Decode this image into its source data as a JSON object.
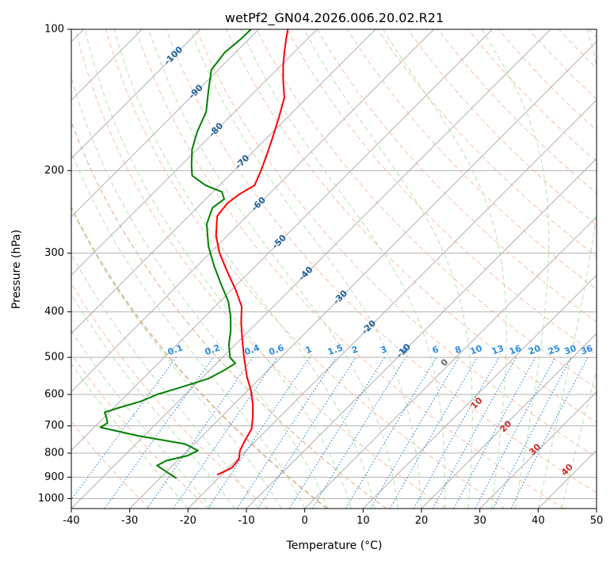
{
  "chart_data": {
    "type": "line",
    "subtype": "skew-t log-p diagram",
    "title": "wetPf2_GN04.2026.006.20.02.R21",
    "xlabel": "Temperature (°C)",
    "ylabel": "Pressure (hPa)",
    "xlim": [
      -40,
      50
    ],
    "ylim": [
      1050,
      100
    ],
    "y_scale": "log",
    "x_ticks": [
      -40,
      -30,
      -20,
      -10,
      0,
      10,
      20,
      30,
      40,
      50
    ],
    "y_ticks": [
      100,
      200,
      300,
      400,
      500,
      600,
      700,
      800,
      900,
      1000
    ],
    "grid": true,
    "series": [
      {
        "variable": "temperature",
        "color": "#ff0000",
        "points": [
          {
            "p": 890,
            "t": -15.0
          },
          {
            "p": 860,
            "t": -12.5
          },
          {
            "p": 825,
            "t": -11.3
          },
          {
            "p": 790,
            "t": -11.1
          },
          {
            "p": 750,
            "t": -10.2
          },
          {
            "p": 710,
            "t": -9.1
          },
          {
            "p": 670,
            "t": -8.9
          },
          {
            "p": 630,
            "t": -8.9
          },
          {
            "p": 590,
            "t": -9.2
          },
          {
            "p": 550,
            "t": -9.9
          },
          {
            "p": 500,
            "t": -10.4
          },
          {
            "p": 460,
            "t": -10.7
          },
          {
            "p": 420,
            "t": -10.9
          },
          {
            "p": 390,
            "t": -10.8
          },
          {
            "p": 360,
            "t": -11.8
          },
          {
            "p": 330,
            "t": -13.2
          },
          {
            "p": 300,
            "t": -14.6
          },
          {
            "p": 275,
            "t": -15.2
          },
          {
            "p": 250,
            "t": -15.0
          },
          {
            "p": 235,
            "t": -13.3
          },
          {
            "p": 225,
            "t": -11.3
          },
          {
            "p": 215,
            "t": -8.6
          },
          {
            "p": 200,
            "t": -7.5
          },
          {
            "p": 185,
            "t": -6.5
          },
          {
            "p": 170,
            "t": -5.5
          },
          {
            "p": 155,
            "t": -4.5
          },
          {
            "p": 140,
            "t": -3.5
          },
          {
            "p": 128,
            "t": -3.7
          },
          {
            "p": 120,
            "t": -3.7
          },
          {
            "p": 112,
            "t": -3.5
          },
          {
            "p": 105,
            "t": -3.2
          },
          {
            "p": 100,
            "t": -2.9
          }
        ]
      },
      {
        "variable": "dewpoint",
        "color": "#008000",
        "points": [
          {
            "p": 905,
            "t": -22.0
          },
          {
            "p": 880,
            "t": -23.5
          },
          {
            "p": 850,
            "t": -25.3
          },
          {
            "p": 830,
            "t": -23.7
          },
          {
            "p": 810,
            "t": -20.1
          },
          {
            "p": 790,
            "t": -18.3
          },
          {
            "p": 765,
            "t": -20.5
          },
          {
            "p": 735,
            "t": -28.5
          },
          {
            "p": 705,
            "t": -35.0
          },
          {
            "p": 690,
            "t": -33.8
          },
          {
            "p": 670,
            "t": -34.0
          },
          {
            "p": 655,
            "t": -34.3
          },
          {
            "p": 640,
            "t": -31.8
          },
          {
            "p": 620,
            "t": -28.0
          },
          {
            "p": 600,
            "t": -25.3
          },
          {
            "p": 580,
            "t": -21.4
          },
          {
            "p": 555,
            "t": -16.5
          },
          {
            "p": 530,
            "t": -13.5
          },
          {
            "p": 515,
            "t": -11.9
          },
          {
            "p": 500,
            "t": -12.8
          },
          {
            "p": 470,
            "t": -13.0
          },
          {
            "p": 440,
            "t": -12.7
          },
          {
            "p": 410,
            "t": -12.7
          },
          {
            "p": 380,
            "t": -13.1
          },
          {
            "p": 350,
            "t": -14.3
          },
          {
            "p": 320,
            "t": -15.5
          },
          {
            "p": 290,
            "t": -16.5
          },
          {
            "p": 260,
            "t": -16.8
          },
          {
            "p": 240,
            "t": -15.8
          },
          {
            "p": 230,
            "t": -13.8
          },
          {
            "p": 222,
            "t": -14.2
          },
          {
            "p": 215,
            "t": -17.0
          },
          {
            "p": 205,
            "t": -19.3
          },
          {
            "p": 195,
            "t": -19.4
          },
          {
            "p": 180,
            "t": -19.3
          },
          {
            "p": 165,
            "t": -18.4
          },
          {
            "p": 150,
            "t": -16.9
          },
          {
            "p": 135,
            "t": -16.5
          },
          {
            "p": 122,
            "t": -16.0
          },
          {
            "p": 112,
            "t": -13.7
          },
          {
            "p": 105,
            "t": -11.0
          },
          {
            "p": 100,
            "t": -9.2
          }
        ]
      }
    ],
    "reference_lines": {
      "isotherms_color": "#b0b0b0",
      "isobars_color": "#b0b0b0",
      "dry_adiabats_color": "#f4a582",
      "moist_adiabats_color": "#a6d8a0",
      "mixing_ratio_color": "#1f78d1",
      "isentrope_color": "#d8b08c",
      "mixing_ratio_labels": [
        "0.1",
        "0.2",
        "0.4",
        "0.6",
        "1",
        "1.5",
        "2",
        "3",
        "4",
        "6",
        "8",
        "10",
        "13",
        "16",
        "20",
        "25",
        "30",
        "36"
      ],
      "mixing_ratio_values": [
        0.1,
        0.2,
        0.4,
        0.6,
        1,
        1.5,
        2,
        3,
        4,
        6,
        8,
        10,
        13,
        16,
        20,
        25,
        30,
        36
      ],
      "isotherm_labels": [
        "-100",
        "-90",
        "-80",
        "-70",
        "-60",
        "-50",
        "-40",
        "-30",
        "-20",
        "-10"
      ],
      "isotherm_label_pressures": [
        114,
        136,
        164,
        192,
        236,
        284,
        332,
        373,
        432,
        485
      ],
      "moist_adiabat_labels": [
        "0",
        "10",
        "20",
        "30",
        "40"
      ],
      "moist_adiabat_label_pressures": [
        514,
        627,
        703,
        787,
        869
      ],
      "moist_adiabat_label_temps": [
        24,
        29.5,
        34.5,
        39.5,
        45
      ]
    }
  }
}
